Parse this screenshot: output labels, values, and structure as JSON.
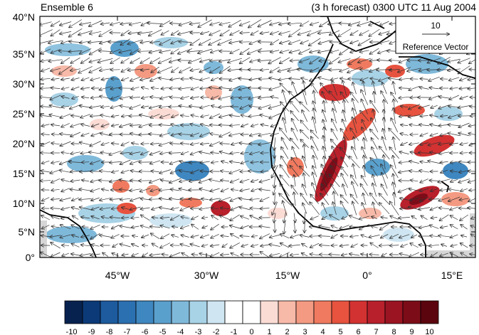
{
  "titles": {
    "left": "Ensemble 6",
    "right": "(3 h forecast) 0300 UTC 11 Aug 2004"
  },
  "map": {
    "lat_labels": [
      "40°N",
      "35°N",
      "30°N",
      "25°N",
      "20°N",
      "15°N",
      "10°N",
      "5°N",
      "0°"
    ],
    "lon_labels": [
      "45°W",
      "30°W",
      "15°W",
      "0°",
      "15°E"
    ],
    "lat_range": [
      0,
      40
    ],
    "lon_range": [
      -57,
      19
    ]
  },
  "reference_vector": {
    "value": "10",
    "label": "Reference Vector"
  },
  "colorbar": {
    "labels": [
      "-10",
      "-9",
      "-8",
      "-7",
      "-6",
      "-5",
      "-4",
      "-3",
      "-2",
      "-1",
      "0",
      "1",
      "2",
      "3",
      "4",
      "5",
      "6",
      "7",
      "8",
      "9",
      "10"
    ],
    "colors": [
      "#08224f",
      "#0c3a78",
      "#1d5a9e",
      "#2b70b1",
      "#3f87c0",
      "#5aa0cd",
      "#7fb9da",
      "#a8d2e6",
      "#cfe6f2",
      "#ffffff",
      "#ffffff",
      "#fbdcd5",
      "#f7b9a8",
      "#f49a82",
      "#f07a5f",
      "#e7533f",
      "#d33232",
      "#b8202b",
      "#9b1422",
      "#7c0d18",
      "#5b050e"
    ]
  }
}
